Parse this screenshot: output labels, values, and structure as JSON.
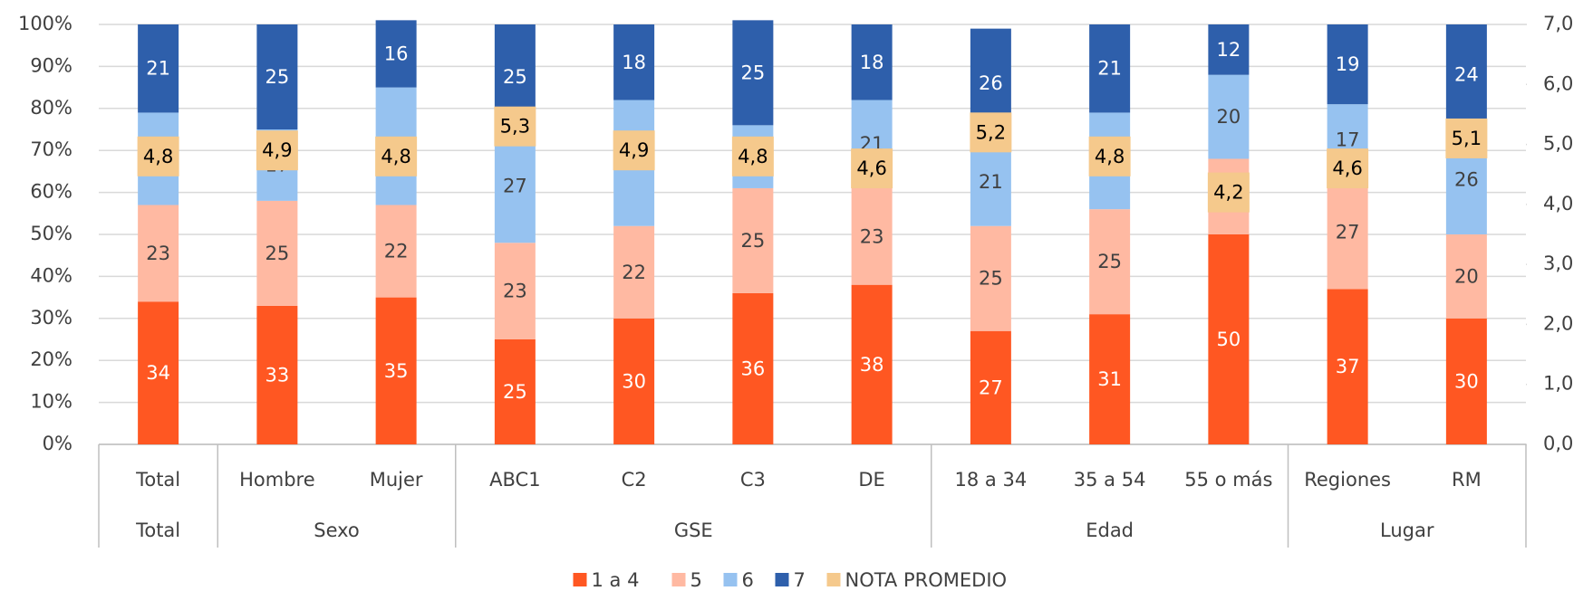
{
  "chart_data": {
    "type": "bar",
    "stacked": true,
    "categories": [
      "Total",
      "Hombre",
      "Mujer",
      "ABC1",
      "C2",
      "C3",
      "DE",
      "18 a 34",
      "35 a 54",
      "55 o más",
      "Regiones",
      "RM"
    ],
    "groups": [
      {
        "label": "Total",
        "count": 1
      },
      {
        "label": "Sexo",
        "count": 2
      },
      {
        "label": "GSE",
        "count": 4
      },
      {
        "label": "Edad",
        "count": 3
      },
      {
        "label": "Lugar",
        "count": 2
      }
    ],
    "series": [
      {
        "name": "1 a 4",
        "color": "#ff5722",
        "values": [
          34,
          33,
          35,
          25,
          30,
          36,
          38,
          27,
          31,
          50,
          37,
          30
        ]
      },
      {
        "name": "5",
        "color": "#ffb9a2",
        "values": [
          23,
          25,
          22,
          23,
          22,
          25,
          23,
          25,
          25,
          18,
          27,
          20
        ]
      },
      {
        "name": "6",
        "color": "#96c2f0",
        "values": [
          22,
          17,
          28,
          27,
          30,
          15,
          21,
          21,
          23,
          20,
          17,
          26
        ]
      },
      {
        "name": "7",
        "color": "#2e5fab",
        "values": [
          21,
          25,
          16,
          25,
          18,
          25,
          18,
          26,
          21,
          12,
          19,
          24
        ]
      },
      {
        "name": "NOTA PROMEDIO",
        "color": "#f5c98c",
        "type": "marker",
        "axis": "y2",
        "values": [
          4.8,
          4.9,
          4.8,
          5.3,
          4.9,
          4.8,
          4.6,
          5.2,
          4.8,
          4.2,
          4.6,
          5.1
        ],
        "value_labels": [
          "4,8",
          "4,9",
          "4,8",
          "5,3",
          "4,9",
          "4,8",
          "4,6",
          "5,2",
          "4,8",
          "4,2",
          "4,6",
          "5,1"
        ]
      }
    ],
    "ylim": [
      0,
      100
    ],
    "yticks": [
      {
        "value": 0,
        "label": "0%"
      },
      {
        "value": 10,
        "label": "10%"
      },
      {
        "value": 20,
        "label": "20%"
      },
      {
        "value": 30,
        "label": "30%"
      },
      {
        "value": 40,
        "label": "40%"
      },
      {
        "value": 50,
        "label": "50%"
      },
      {
        "value": 60,
        "label": "60%"
      },
      {
        "value": 70,
        "label": "70%"
      },
      {
        "value": 80,
        "label": "80%"
      },
      {
        "value": 90,
        "label": "90%"
      },
      {
        "value": 100,
        "label": "100%"
      }
    ],
    "y2lim": [
      0,
      7
    ],
    "y2ticks": [
      {
        "value": 0,
        "label": "0,0"
      },
      {
        "value": 1,
        "label": "1,0"
      },
      {
        "value": 2,
        "label": "2,0"
      },
      {
        "value": 3,
        "label": "3,0"
      },
      {
        "value": 4,
        "label": "4,0"
      },
      {
        "value": 5,
        "label": "5,0"
      },
      {
        "value": 6,
        "label": "6,0"
      },
      {
        "value": 7,
        "label": "7,0"
      }
    ],
    "grid": true,
    "legend": "bottom"
  }
}
